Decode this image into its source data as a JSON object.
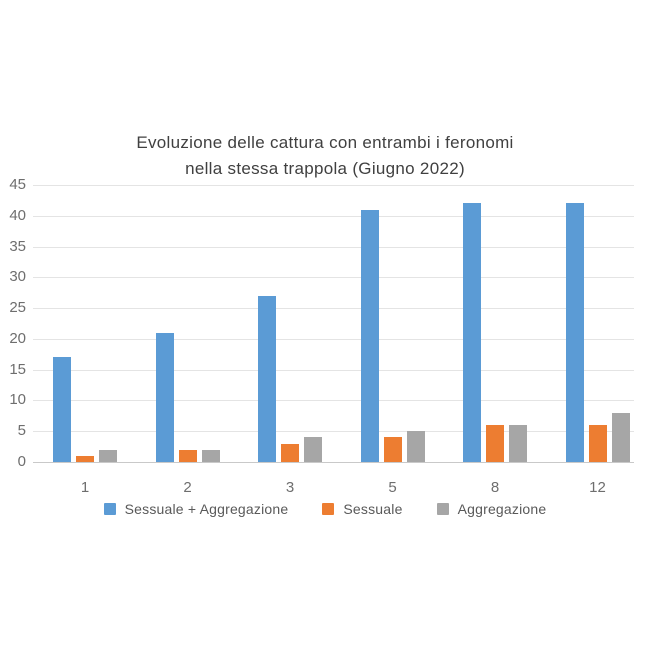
{
  "chart": {
    "title_line1": "Evoluzione delle cattura con entrambi i feronomi",
    "title_line2": "nella stessa trappola (Giugno 2022)"
  },
  "chart_data": {
    "type": "bar",
    "title": "Evoluzione delle cattura con entrambi i feronomi nella stessa trappola (Giugno 2022)",
    "categories": [
      "1",
      "2",
      "3",
      "5",
      "8",
      "12"
    ],
    "series": [
      {
        "name": "Sessuale + Aggregazione",
        "color": "#5B9BD5",
        "values": [
          17,
          21,
          27,
          41,
          42,
          42
        ]
      },
      {
        "name": "Sessuale",
        "color": "#ED7D31",
        "values": [
          1,
          2,
          3,
          4,
          6,
          6
        ]
      },
      {
        "name": "Aggregazione",
        "color": "#A6A6A6",
        "values": [
          2,
          2,
          4,
          5,
          6,
          8
        ]
      }
    ],
    "xlabel": "",
    "ylabel": "",
    "ylim": [
      0,
      45
    ],
    "ytick_step": 5,
    "yticks": [
      0,
      5,
      10,
      15,
      20,
      25,
      30,
      35,
      40,
      45
    ],
    "grid": true,
    "legend_position": "bottom"
  }
}
